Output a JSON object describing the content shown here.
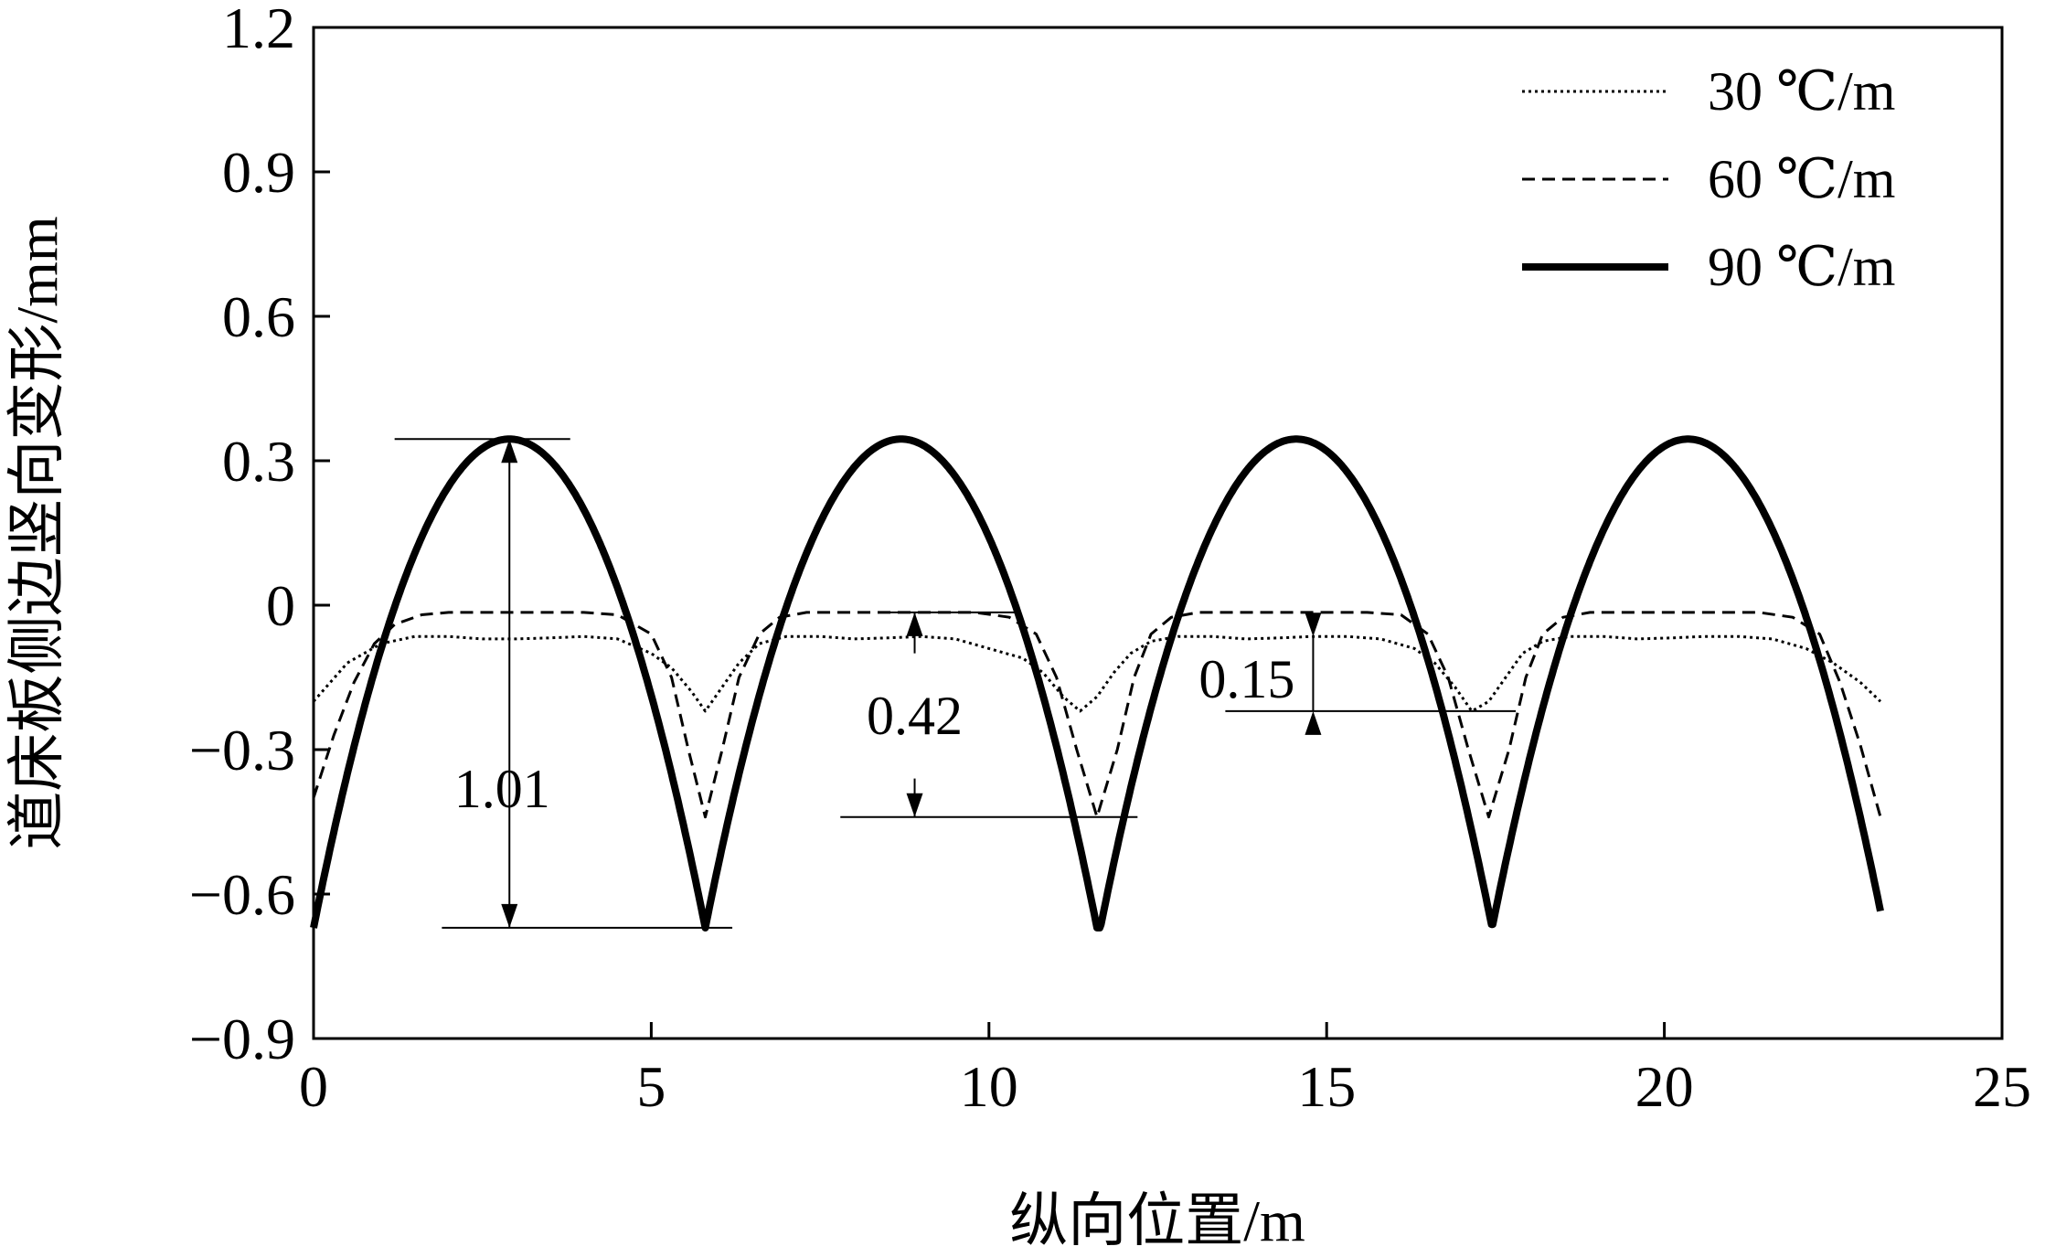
{
  "chart_data": {
    "type": "line",
    "title": "",
    "xlabel": "纵向位置/m",
    "ylabel": "道床板侧边竖向变形/mm",
    "xlim": [
      0,
      25
    ],
    "ylim": [
      -0.9,
      1.2
    ],
    "xticks": [
      0,
      5,
      10,
      15,
      20,
      25
    ],
    "yticks": [
      -0.9,
      -0.6,
      -0.3,
      0,
      0.3,
      0.6,
      0.9,
      1.2
    ],
    "xtick_labels": [
      "0",
      "5",
      "10",
      "15",
      "20",
      "25"
    ],
    "ytick_labels": [
      "−0.9",
      "−0.6",
      "−0.3",
      "0",
      "0.3",
      "0.6",
      "0.9",
      "1.2"
    ],
    "grid": false,
    "legend_position": "top-right",
    "series": [
      {
        "name": "30 ℃/m",
        "style": "dotted",
        "color": "#000000",
        "x": [
          0,
          0.5,
          1,
          1.5,
          2,
          2.5,
          3,
          3.5,
          4,
          4.5,
          5,
          5.3,
          5.6,
          5.8,
          6.0,
          6.3,
          6.6,
          7,
          7.5,
          8,
          8.5,
          9,
          9.5,
          10,
          10.5,
          10.8,
          11.1,
          11.35,
          11.6,
          11.85,
          12.1,
          12.4,
          12.8,
          13.3,
          13.8,
          14.3,
          14.8,
          15.3,
          15.8,
          16.3,
          16.6,
          16.9,
          17.15,
          17.4,
          17.65,
          17.9,
          18.2,
          18.6,
          19.1,
          19.6,
          20.1,
          20.6,
          21.1,
          21.6,
          22.1,
          22.5,
          22.9,
          23.2
        ],
        "y": [
          -0.2,
          -0.12,
          -0.08,
          -0.065,
          -0.065,
          -0.07,
          -0.07,
          -0.068,
          -0.065,
          -0.07,
          -0.1,
          -0.13,
          -0.18,
          -0.22,
          -0.18,
          -0.12,
          -0.08,
          -0.065,
          -0.065,
          -0.07,
          -0.068,
          -0.065,
          -0.07,
          -0.09,
          -0.11,
          -0.14,
          -0.19,
          -0.22,
          -0.19,
          -0.14,
          -0.1,
          -0.075,
          -0.065,
          -0.065,
          -0.07,
          -0.068,
          -0.065,
          -0.065,
          -0.07,
          -0.09,
          -0.12,
          -0.17,
          -0.22,
          -0.2,
          -0.15,
          -0.1,
          -0.075,
          -0.065,
          -0.065,
          -0.07,
          -0.068,
          -0.065,
          -0.065,
          -0.07,
          -0.09,
          -0.12,
          -0.16,
          -0.2
        ]
      },
      {
        "name": "60 ℃/m",
        "style": "dashed",
        "color": "#000000",
        "x": [
          0,
          0.3,
          0.6,
          0.9,
          1.2,
          1.6,
          2,
          2.5,
          3,
          3.5,
          4,
          4.5,
          5,
          5.3,
          5.55,
          5.8,
          6.05,
          6.3,
          6.6,
          6.9,
          7.3,
          7.8,
          8.3,
          8.8,
          9.3,
          9.8,
          10.3,
          10.7,
          11.0,
          11.3,
          11.6,
          11.9,
          12.15,
          12.4,
          12.7,
          13.1,
          13.6,
          14.1,
          14.6,
          15.1,
          15.6,
          16.1,
          16.5,
          16.8,
          17.1,
          17.4,
          17.7,
          17.95,
          18.2,
          18.5,
          18.9,
          19.4,
          19.9,
          20.4,
          20.9,
          21.4,
          21.9,
          22.3,
          22.6,
          22.9,
          23.2
        ],
        "y": [
          -0.4,
          -0.27,
          -0.16,
          -0.08,
          -0.04,
          -0.02,
          -0.015,
          -0.015,
          -0.015,
          -0.015,
          -0.015,
          -0.02,
          -0.06,
          -0.15,
          -0.3,
          -0.44,
          -0.3,
          -0.15,
          -0.06,
          -0.025,
          -0.015,
          -0.015,
          -0.015,
          -0.015,
          -0.015,
          -0.015,
          -0.025,
          -0.06,
          -0.15,
          -0.3,
          -0.44,
          -0.3,
          -0.15,
          -0.06,
          -0.025,
          -0.015,
          -0.015,
          -0.015,
          -0.015,
          -0.015,
          -0.015,
          -0.02,
          -0.06,
          -0.15,
          -0.3,
          -0.44,
          -0.3,
          -0.15,
          -0.06,
          -0.025,
          -0.015,
          -0.015,
          -0.015,
          -0.015,
          -0.015,
          -0.015,
          -0.025,
          -0.06,
          -0.16,
          -0.29,
          -0.44
        ]
      },
      {
        "name": "90 ℃/m",
        "style": "solid",
        "color": "#000000",
        "arch_centers": [
          2.9,
          8.7,
          14.55,
          20.35
        ],
        "arch_half_width": 2.9,
        "peak": 0.345,
        "trough": -0.67,
        "x_range": [
          0,
          23.2
        ]
      }
    ],
    "annotations": [
      {
        "label": "1.01",
        "from": 0.345,
        "to": -0.67,
        "x": 2.9,
        "arrows": "both"
      },
      {
        "label": "0.42",
        "from": -0.015,
        "to": -0.44,
        "x": 8.9,
        "arrows": "inward"
      },
      {
        "label": "0.15",
        "from": -0.065,
        "to": -0.22,
        "x": 14.8,
        "arrows": "inward"
      }
    ]
  }
}
